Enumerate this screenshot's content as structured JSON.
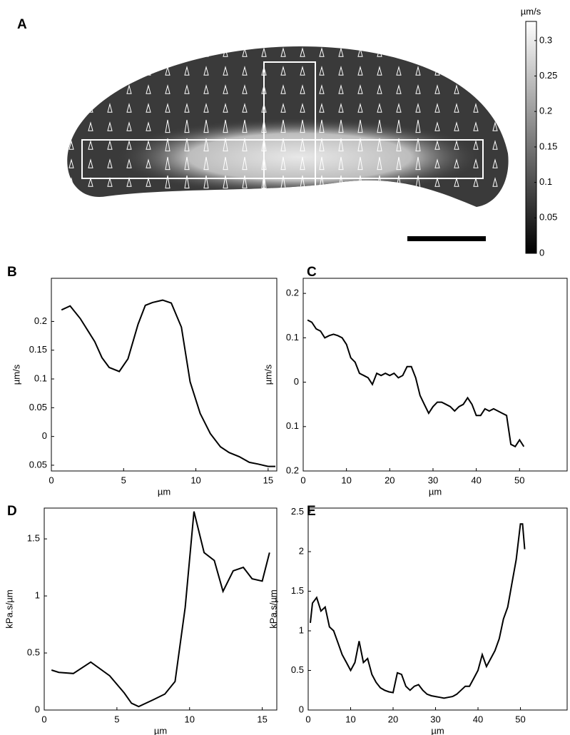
{
  "chart_data": [
    {
      "type": "colorbar",
      "panel": "A",
      "label": "µm/s",
      "clim": [
        0,
        0.327
      ],
      "ticks": [
        0,
        0.05,
        0.1,
        0.15,
        0.2,
        0.25,
        0.3
      ]
    },
    {
      "type": "line",
      "panel": "B",
      "xlabel": "µm",
      "ylabel": "µm/s",
      "color": "#000000",
      "x": [
        0.7,
        1.3,
        2,
        3,
        3.5,
        4,
        4.7,
        5.3,
        6,
        6.5,
        7,
        7.7,
        8.3,
        9,
        9.6,
        10.3,
        11,
        11.7,
        12.3,
        13,
        13.7,
        14.3,
        15,
        15.5
      ],
      "values": [
        0.22,
        0.227,
        0.205,
        0.165,
        0.137,
        0.12,
        0.113,
        0.135,
        0.195,
        0.228,
        0.233,
        0.237,
        0.232,
        0.19,
        0.095,
        0.04,
        0.005,
        -0.018,
        -0.028,
        -0.035,
        -0.045,
        -0.048,
        -0.052,
        -0.052
      ],
      "xlim": [
        0,
        15.6
      ],
      "xticks": [
        0,
        5,
        10,
        15
      ],
      "ylim": [
        -0.06,
        0.275
      ],
      "yticks": [
        {
          "value": -0.05,
          "label": "0.05"
        },
        0,
        0.05,
        0.1,
        0.15,
        0.2
      ]
    },
    {
      "type": "line",
      "panel": "C",
      "xlabel": "µm",
      "ylabel": "µm/s",
      "color": "#000000",
      "x": [
        1,
        2,
        3,
        4,
        5,
        6,
        7,
        8,
        9,
        10,
        11,
        12,
        13,
        14,
        15,
        16,
        17,
        18,
        19,
        20,
        21,
        22,
        23,
        24,
        25,
        26,
        27,
        28,
        29,
        30,
        31,
        32,
        33,
        34,
        35,
        36,
        37,
        38,
        39,
        40,
        41,
        42,
        43,
        44,
        45,
        46,
        47,
        48,
        49,
        50,
        51
      ],
      "values": [
        0.14,
        0.135,
        0.12,
        0.115,
        0.1,
        0.105,
        0.108,
        0.105,
        0.1,
        0.085,
        0.055,
        0.045,
        0.02,
        0.015,
        0.01,
        -0.005,
        0.02,
        0.015,
        0.02,
        0.015,
        0.02,
        0.01,
        0.015,
        0.035,
        0.035,
        0.01,
        -0.03,
        -0.05,
        -0.07,
        -0.055,
        -0.045,
        -0.045,
        -0.05,
        -0.055,
        -0.065,
        -0.055,
        -0.05,
        -0.035,
        -0.05,
        -0.075,
        -0.075,
        -0.06,
        -0.065,
        -0.06,
        -0.065,
        -0.07,
        -0.075,
        -0.14,
        -0.145,
        -0.13,
        -0.145
      ],
      "xlim": [
        0,
        61
      ],
      "xticks": [
        0,
        10,
        20,
        30,
        40,
        50
      ],
      "ylim": [
        -0.2,
        0.234
      ],
      "yticks": [
        {
          "value": -0.2,
          "label": "0.2"
        },
        {
          "value": -0.1,
          "label": "0.1"
        },
        0,
        0.1,
        0.2
      ]
    },
    {
      "type": "line",
      "panel": "D",
      "xlabel": "µm",
      "ylabel": "kPa.s/µm",
      "color": "#000000",
      "x": [
        0.5,
        1,
        2,
        3.2,
        4.5,
        5.5,
        6,
        6.5,
        7.5,
        8.3,
        9,
        9.7,
        10.3,
        11,
        11.7,
        12.3,
        13,
        13.7,
        14.3,
        15,
        15.5
      ],
      "values": [
        0.35,
        0.33,
        0.32,
        0.42,
        0.3,
        0.15,
        0.06,
        0.03,
        0.09,
        0.14,
        0.25,
        0.9,
        1.74,
        1.38,
        1.31,
        1.04,
        1.22,
        1.25,
        1.15,
        1.13,
        1.38
      ],
      "xlim": [
        0,
        16
      ],
      "xticks": [
        0,
        5,
        10,
        15
      ],
      "ylim": [
        0,
        1.77
      ],
      "yticks": [
        0,
        0.5,
        1,
        1.5
      ]
    },
    {
      "type": "line",
      "panel": "E",
      "xlabel": "µm",
      "ylabel": "kPa.s/µm",
      "color": "#000000",
      "x": [
        0.5,
        1,
        2,
        3,
        4,
        5,
        6,
        7,
        8,
        9,
        10,
        11,
        12,
        13,
        14,
        15,
        16,
        17,
        18,
        19,
        20,
        21,
        22,
        23,
        24,
        25,
        26,
        27,
        28,
        29,
        30,
        31,
        32,
        33,
        34,
        35,
        36,
        37,
        38,
        39,
        40,
        41,
        42,
        43,
        44,
        45,
        46,
        47,
        48,
        49,
        50,
        50.5,
        51
      ],
      "values": [
        1.1,
        1.35,
        1.42,
        1.25,
        1.3,
        1.05,
        1.0,
        0.85,
        0.7,
        0.6,
        0.5,
        0.6,
        0.87,
        0.6,
        0.65,
        0.45,
        0.35,
        0.28,
        0.25,
        0.23,
        0.22,
        0.47,
        0.45,
        0.3,
        0.25,
        0.3,
        0.32,
        0.25,
        0.2,
        0.18,
        0.17,
        0.16,
        0.15,
        0.16,
        0.17,
        0.2,
        0.25,
        0.3,
        0.3,
        0.4,
        0.5,
        0.7,
        0.55,
        0.65,
        0.75,
        0.9,
        1.15,
        1.3,
        1.6,
        1.9,
        2.35,
        2.35,
        2.03
      ],
      "xlim": [
        0,
        61
      ],
      "xticks": [
        0,
        10,
        20,
        30,
        40,
        50
      ],
      "ylim": [
        0,
        2.55
      ],
      "yticks": [
        0,
        0.5,
        1,
        1.5,
        2,
        2.5
      ]
    }
  ]
}
